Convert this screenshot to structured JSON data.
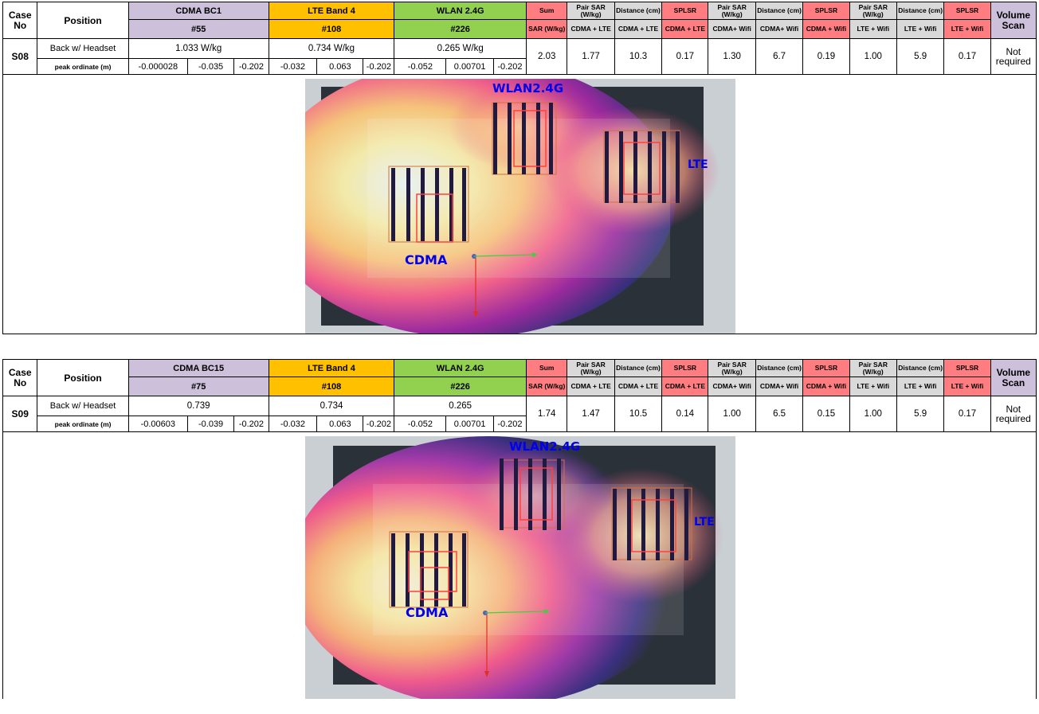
{
  "headers": {
    "case_no": "Case No",
    "position": "Position",
    "sum": "Sum",
    "sum_unit": "SAR (W/kg)",
    "pair_sar": "Pair SAR (W/kg)",
    "distance": "Distance (cm)",
    "splsr": "SPLSR",
    "pair_cdma_lte": "CDMA + LTE",
    "pair_cdma_wifi": "CDMA+ Wifi",
    "pair_cdma_wifi_b": "CDMA + Wifi",
    "pair_lte_wifi": "LTE + Wifi",
    "volume_scan": "Volume Scan",
    "peak": "peak ordinate (m)",
    "lte_band": "LTE Band 4",
    "wlan": "WLAN 2.4G"
  },
  "cases": [
    {
      "case": "S08",
      "position": "Back w/ Headset",
      "cdma_band": "CDMA BC1",
      "cdma_ch": "#55",
      "lte_ch": "#108",
      "wlan_ch": "#226",
      "cdma_sar": "1.033 W/kg",
      "lte_sar": "0.734 W/kg",
      "wlan_sar": "0.265 W/kg",
      "cdma_peak": [
        "-0.000028",
        "-0.035",
        "-0.202"
      ],
      "lte_peak": [
        "-0.032",
        "0.063",
        "-0.202"
      ],
      "wlan_peak": [
        "-0.052",
        "0.00701",
        "-0.202"
      ],
      "sum": "2.03",
      "pair1": "1.77",
      "dist1": "10.3",
      "splsr1": "0.17",
      "pair2": "1.30",
      "dist2": "6.7",
      "splsr2": "0.19",
      "pair3": "1.00",
      "dist3": "5.9",
      "splsr3": "0.17",
      "volume": "Not required",
      "plot_labels": {
        "wlan": "WLAN2.4G",
        "lte": "LTE",
        "cdma": "CDMA"
      }
    },
    {
      "case": "S09",
      "position": "Back w/ Headset",
      "cdma_band": "CDMA BC15",
      "cdma_ch": "#75",
      "lte_ch": "#108",
      "wlan_ch": "#226",
      "cdma_sar": "0.739",
      "lte_sar": "0.734",
      "wlan_sar": "0.265",
      "cdma_peak": [
        "-0.00603",
        "-0.039",
        "-0.202"
      ],
      "lte_peak": [
        "-0.032",
        "0.063",
        "-0.202"
      ],
      "wlan_peak": [
        "-0.052",
        "0.00701",
        "-0.202"
      ],
      "sum": "1.74",
      "pair1": "1.47",
      "dist1": "10.5",
      "splsr1": "0.14",
      "pair2": "1.00",
      "dist2": "6.5",
      "splsr2": "0.15",
      "pair3": "1.00",
      "dist3": "5.9",
      "splsr3": "0.17",
      "volume": "Not required",
      "plot_labels": {
        "wlan": "WLAN2.4G",
        "lte": "LTE",
        "cdma": "CDMA"
      }
    }
  ]
}
